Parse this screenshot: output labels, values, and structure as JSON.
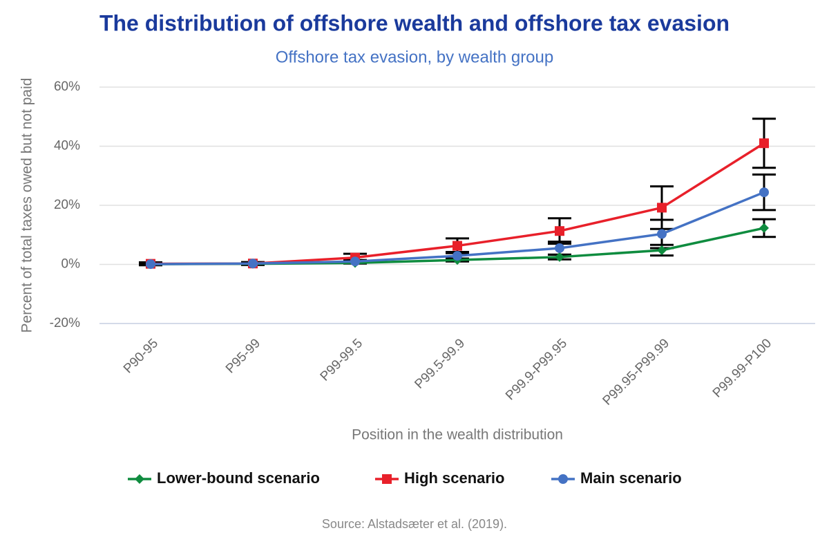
{
  "chart_data": {
    "type": "line",
    "title": "The distribution of offshore wealth and offshore tax evasion",
    "subtitle": "Offshore tax evasion, by wealth group",
    "x_label": "Position in the wealth distribution",
    "y_label": "Percent of total taxes owed but not paid",
    "source": "Source: Alstadsæter et al. (2019).",
    "categories": [
      "P90-95",
      "P95-99",
      "P99-99.5",
      "P99.5-99.9",
      "P99.9-P99.95",
      "P99.95-P99.99",
      "P99.99-P100"
    ],
    "ylim": [
      -20,
      60
    ],
    "yticks": [
      {
        "value": -20,
        "label": "-20%"
      },
      {
        "value": 0,
        "label": "0%"
      },
      {
        "value": 20,
        "label": "20%"
      },
      {
        "value": 40,
        "label": "40%"
      },
      {
        "value": 60,
        "label": "60%"
      }
    ],
    "grid": true,
    "legend": "bottom",
    "error_bar_color": "#000000",
    "series": [
      {
        "name": "Lower-bound scenario",
        "color": "#0f8c3f",
        "marker": "diamond",
        "values": [
          0.1,
          0.2,
          0.5,
          1.5,
          2.5,
          4.8,
          12.3
        ],
        "errors": [
          0.1,
          0.1,
          0.2,
          0.5,
          0.8,
          1.8,
          3
        ]
      },
      {
        "name": "High scenario",
        "color": "#e8202a",
        "marker": "square",
        "values": [
          0.2,
          0.3,
          2.3,
          6.3,
          11.3,
          19.2,
          41
        ],
        "errors": [
          0.5,
          0.5,
          1.3,
          2.5,
          4.3,
          7.2,
          8.3
        ]
      },
      {
        "name": "Main scenario",
        "color": "#4472c4",
        "marker": "circle",
        "values": [
          0.1,
          0.3,
          1,
          2.9,
          5.5,
          10.3,
          24.4
        ],
        "errors": [
          0.2,
          0.3,
          0.5,
          1.3,
          2.2,
          4.8,
          6
        ]
      }
    ]
  }
}
